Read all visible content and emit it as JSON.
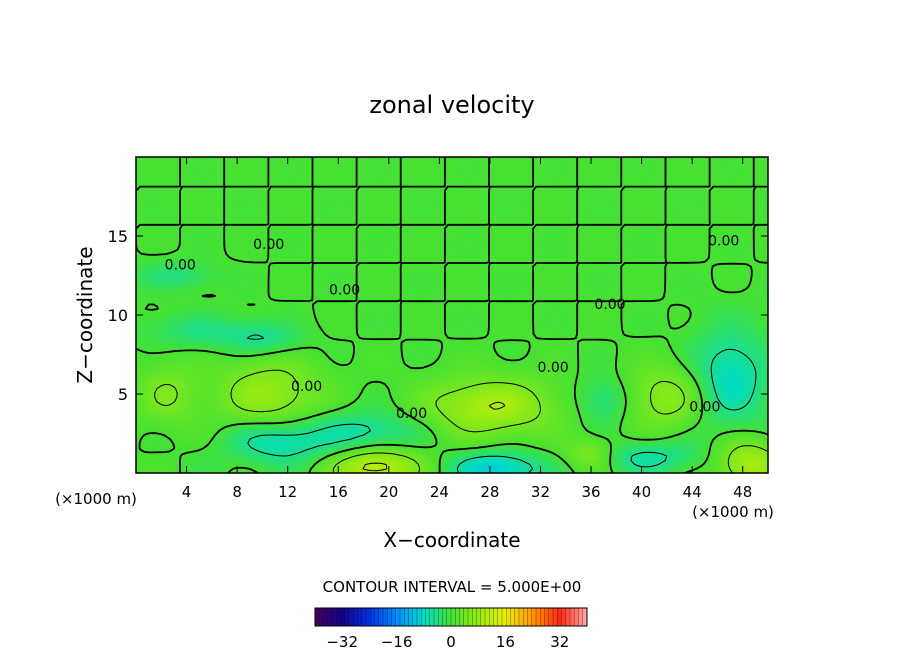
{
  "chart_data": {
    "type": "contour",
    "title": "zonal velocity",
    "xlabel": "X−coordinate",
    "ylabel": "Z−coordinate",
    "x_unit_left": "(×1000 m)",
    "x_unit_right": "(×1000 m)",
    "xlim": [
      0,
      50
    ],
    "ylim": [
      0,
      20
    ],
    "xticks": [
      4,
      8,
      12,
      16,
      20,
      24,
      28,
      32,
      36,
      40,
      44,
      48
    ],
    "yticks": [
      5,
      10,
      15
    ],
    "contour_interval_text": "CONTOUR INTERVAL = 5.000E+00",
    "contour_interval": 5,
    "colorbar": {
      "min": -40,
      "max": 40,
      "tick_values": [
        -32,
        -16,
        0,
        16,
        32
      ],
      "tick_labels": [
        "−32",
        "−16",
        "0",
        "16",
        "32"
      ]
    },
    "contour_labels": [
      {
        "text": "0.00",
        "x": 10.5,
        "z": 14.5
      },
      {
        "text": "0.00",
        "x": 3.5,
        "z": 13.2
      },
      {
        "text": "0.00",
        "x": 16.5,
        "z": 11.6
      },
      {
        "text": "0.00",
        "x": 37.5,
        "z": 10.7
      },
      {
        "text": "0.00",
        "x": 46.5,
        "z": 14.7
      },
      {
        "text": "0.00",
        "x": 33.0,
        "z": 6.7
      },
      {
        "text": "0.00",
        "x": 13.5,
        "z": 5.5
      },
      {
        "text": "0.00",
        "x": 21.8,
        "z": 3.8
      },
      {
        "text": "0.00",
        "x": 45.0,
        "z": 4.2
      }
    ],
    "features": [
      {
        "sign": "positive",
        "x": 10.5,
        "z": 5.0,
        "rx": 4.0,
        "rz": 2.2,
        "u": 8
      },
      {
        "sign": "positive",
        "x": 28.0,
        "z": 4.2,
        "rx": 5.0,
        "rz": 1.8,
        "u": 10
      },
      {
        "sign": "positive",
        "x": 42.0,
        "z": 4.8,
        "rx": 3.2,
        "rz": 2.0,
        "u": 7
      },
      {
        "sign": "positive",
        "x": 2.5,
        "z": 5.0,
        "rx": 2.5,
        "rz": 2.0,
        "u": 5
      },
      {
        "sign": "positive",
        "x": 19.0,
        "z": 0.4,
        "rx": 3.5,
        "rz": 1.2,
        "u": 12
      },
      {
        "sign": "positive",
        "x": 48.5,
        "z": 0.6,
        "rx": 2.5,
        "rz": 1.5,
        "u": 10
      },
      {
        "sign": "positive",
        "x": 36.0,
        "z": 1.2,
        "rx": 2.0,
        "rz": 1.0,
        "u": 6
      },
      {
        "sign": "negative",
        "x": 11.5,
        "z": 2.0,
        "rx": 4.0,
        "rz": 1.4,
        "u": -8
      },
      {
        "sign": "negative",
        "x": 18.5,
        "z": 2.6,
        "rx": 4.0,
        "rz": 1.3,
        "u": -6
      },
      {
        "sign": "negative",
        "x": 28.5,
        "z": 0.3,
        "rx": 3.5,
        "rz": 1.0,
        "u": -10
      },
      {
        "sign": "negative",
        "x": 47.0,
        "z": 6.0,
        "rx": 3.0,
        "rz": 3.0,
        "u": -8
      },
      {
        "sign": "negative",
        "x": 37.0,
        "z": 4.6,
        "rx": 2.0,
        "rz": 1.4,
        "u": -5
      },
      {
        "sign": "negative",
        "x": 5.0,
        "z": 9.0,
        "rx": 4.0,
        "rz": 1.0,
        "u": -4
      },
      {
        "sign": "negative",
        "x": 10.0,
        "z": 8.5,
        "rx": 3.0,
        "rz": 1.0,
        "u": -5
      },
      {
        "sign": "negative",
        "x": 3.0,
        "z": 12.5,
        "rx": 3.0,
        "rz": 0.8,
        "u": -4
      },
      {
        "sign": "negative",
        "x": 40.5,
        "z": 1.0,
        "rx": 4.0,
        "rz": 1.0,
        "u": -6
      }
    ]
  }
}
